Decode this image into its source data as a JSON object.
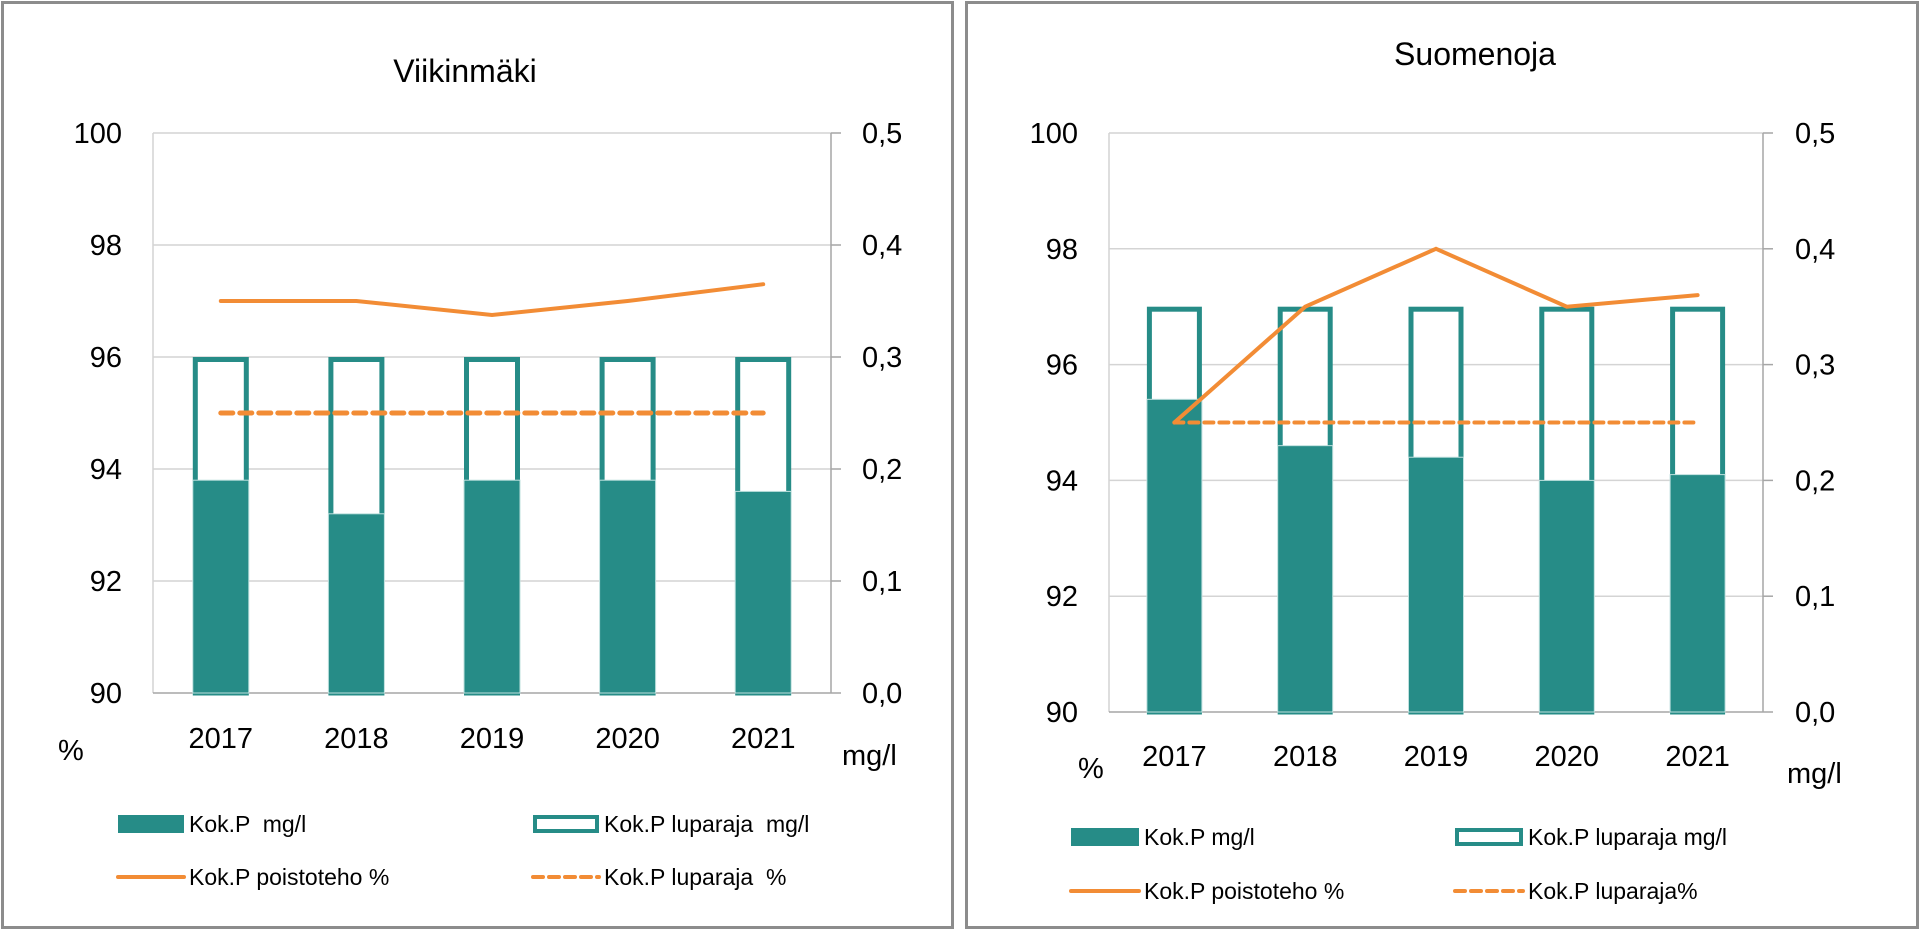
{
  "colors": {
    "bar_fill": "#268c87",
    "bar_outline": "#268c87",
    "line": "#f28c35",
    "grid": "#d4d4d4",
    "axis": "#a6a6a6"
  },
  "chart_data": [
    {
      "type": "bar",
      "title": "Viikinmäki",
      "categories": [
        "2017",
        "2018",
        "2019",
        "2020",
        "2021"
      ],
      "left_axis": {
        "label": "%",
        "ylim": [
          90,
          100
        ],
        "ticks": [
          "90",
          "92",
          "94",
          "96",
          "98",
          "100"
        ]
      },
      "right_axis": {
        "label": "mg/l",
        "ylim": [
          0.0,
          0.5
        ],
        "ticks": [
          "0,0",
          "0,1",
          "0,2",
          "0,3",
          "0,4",
          "0,5"
        ]
      },
      "grid": true,
      "legend_position": "bottom",
      "series": [
        {
          "name": "Kok.P  mg/l",
          "kind": "bar-filled",
          "axis": "right",
          "values": [
            0.19,
            0.16,
            0.19,
            0.19,
            0.18
          ]
        },
        {
          "name": "Kok.P luparaja  mg/l",
          "kind": "bar-outline",
          "axis": "right",
          "values": [
            0.3,
            0.3,
            0.3,
            0.3,
            0.3
          ]
        },
        {
          "name": "Kok.P poistoteho %",
          "kind": "line-solid",
          "axis": "left",
          "values": [
            97.0,
            97.0,
            96.75,
            97.0,
            97.3
          ]
        },
        {
          "name": "Kok.P luparaja  %",
          "kind": "line-dashed",
          "axis": "left",
          "values": [
            95,
            95,
            95,
            95,
            95
          ]
        }
      ]
    },
    {
      "type": "bar",
      "title": "Suomenoja",
      "categories": [
        "2017",
        "2018",
        "2019",
        "2020",
        "2021"
      ],
      "left_axis": {
        "label": "%",
        "ylim": [
          90,
          100
        ],
        "ticks": [
          "90",
          "92",
          "94",
          "96",
          "98",
          "100"
        ]
      },
      "right_axis": {
        "label": "mg/l",
        "ylim": [
          0.0,
          0.5
        ],
        "ticks": [
          "0,0",
          "0,1",
          "0,2",
          "0,3",
          "0,4",
          "0,5"
        ]
      },
      "grid": true,
      "legend_position": "bottom",
      "series": [
        {
          "name": "Kok.P mg/l",
          "kind": "bar-filled",
          "axis": "right",
          "values": [
            0.27,
            0.23,
            0.22,
            0.2,
            0.205
          ]
        },
        {
          "name": "Kok.P luparaja mg/l",
          "kind": "bar-outline",
          "axis": "right",
          "values": [
            0.35,
            0.35,
            0.35,
            0.35,
            0.35
          ]
        },
        {
          "name": "Kok.P poistoteho %",
          "kind": "line-solid",
          "axis": "left",
          "values": [
            95.0,
            97.0,
            98.0,
            97.0,
            97.2
          ]
        },
        {
          "name": "Kok.P luparaja%",
          "kind": "line-dashed",
          "axis": "left",
          "values": [
            95,
            95,
            95,
            95,
            95
          ]
        }
      ]
    }
  ]
}
